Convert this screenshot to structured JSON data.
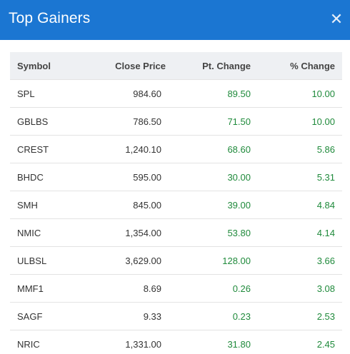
{
  "window": {
    "title": "Top Gainers",
    "close_glyph": "✕"
  },
  "table": {
    "columns": [
      "Symbol",
      "Close Price",
      "Pt. Change",
      "% Change"
    ],
    "rows": [
      {
        "symbol": "SPL",
        "close": "984.60",
        "pt": "89.50",
        "pct": "10.00"
      },
      {
        "symbol": "GBLBS",
        "close": "786.50",
        "pt": "71.50",
        "pct": "10.00"
      },
      {
        "symbol": "CREST",
        "close": "1,240.10",
        "pt": "68.60",
        "pct": "5.86"
      },
      {
        "symbol": "BHDC",
        "close": "595.00",
        "pt": "30.00",
        "pct": "5.31"
      },
      {
        "symbol": "SMH",
        "close": "845.00",
        "pt": "39.00",
        "pct": "4.84"
      },
      {
        "symbol": "NMIC",
        "close": "1,354.00",
        "pt": "53.80",
        "pct": "4.14"
      },
      {
        "symbol": "ULBSL",
        "close": "3,629.00",
        "pt": "128.00",
        "pct": "3.66"
      },
      {
        "symbol": "MMF1",
        "close": "8.69",
        "pt": "0.26",
        "pct": "3.08"
      },
      {
        "symbol": "SAGF",
        "close": "9.33",
        "pt": "0.23",
        "pct": "2.53"
      },
      {
        "symbol": "NRIC",
        "close": "1,331.00",
        "pt": "31.80",
        "pct": "2.45"
      }
    ]
  },
  "colors": {
    "header_bg": "#1b76d2",
    "positive": "#1f8a3b",
    "table_head_bg": "#eef0f3"
  },
  "icons": {
    "close": "close-icon"
  }
}
